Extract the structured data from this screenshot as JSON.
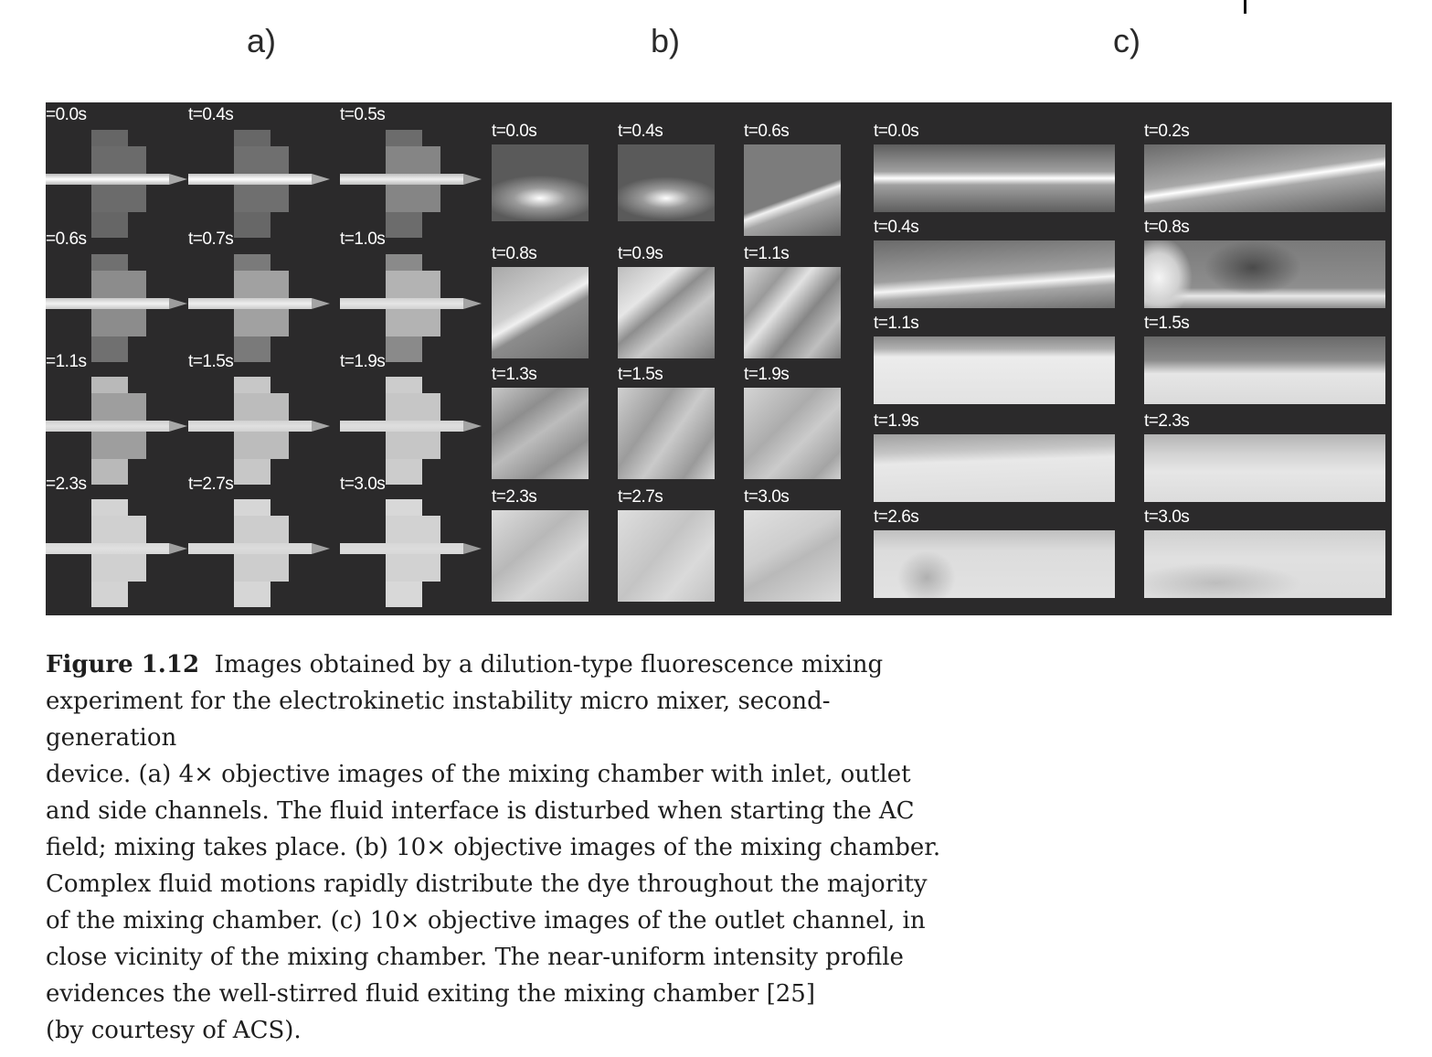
{
  "panel_letters": {
    "a": "a)",
    "b": "b)",
    "c": "c)"
  },
  "panel_a": {
    "labels": [
      "=0.0s",
      "t=0.4s",
      "t=0.5s",
      "=0.6s",
      "t=0.7s",
      "t=1.0s",
      "=1.1s",
      "t=1.5s",
      "t=1.9s",
      "=2.3s",
      "t=2.7s",
      "t=3.0s"
    ]
  },
  "panel_b": {
    "labels": [
      "t=0.0s",
      "t=0.4s",
      "t=0.6s",
      "t=0.8s",
      "t=0.9s",
      "t=1.1s",
      "t=1.3s",
      "t=1.5s",
      "t=1.9s",
      "t=2.3s",
      "t=2.7s",
      "t=3.0s"
    ]
  },
  "panel_c": {
    "labels": [
      "t=0.0s",
      "t=0.2s",
      "t=0.4s",
      "t=0.8s",
      "t=1.1s",
      "t=1.5s",
      "t=1.9s",
      "t=2.3s",
      "t=2.6s",
      "t=3.0s"
    ]
  },
  "caption": {
    "label": "Figure 1.12",
    "lines": [
      "Images obtained by a dilution-type fluorescence mixing",
      "experiment for the electrokinetic instability micro mixer, second-generation",
      "device. (a) 4× objective images of the mixing chamber with inlet, outlet",
      "and side channels. The fluid interface is disturbed when starting the AC",
      "field; mixing takes place. (b) 10× objective images of the mixing chamber.",
      "Complex fluid motions rapidly distribute the dye throughout the majority",
      "of the mixing chamber. (c) 10× objective images of the outlet channel, in",
      "close vicinity of the mixing chamber. The near-uniform intensity profile",
      "evidences the well-stirred fluid exiting the mixing chamber [25]",
      "(by courtesy of ACS)."
    ]
  },
  "colors": {
    "background": "#2b2a2b",
    "label": "#ffffff",
    "text": "#1e1e1e"
  }
}
